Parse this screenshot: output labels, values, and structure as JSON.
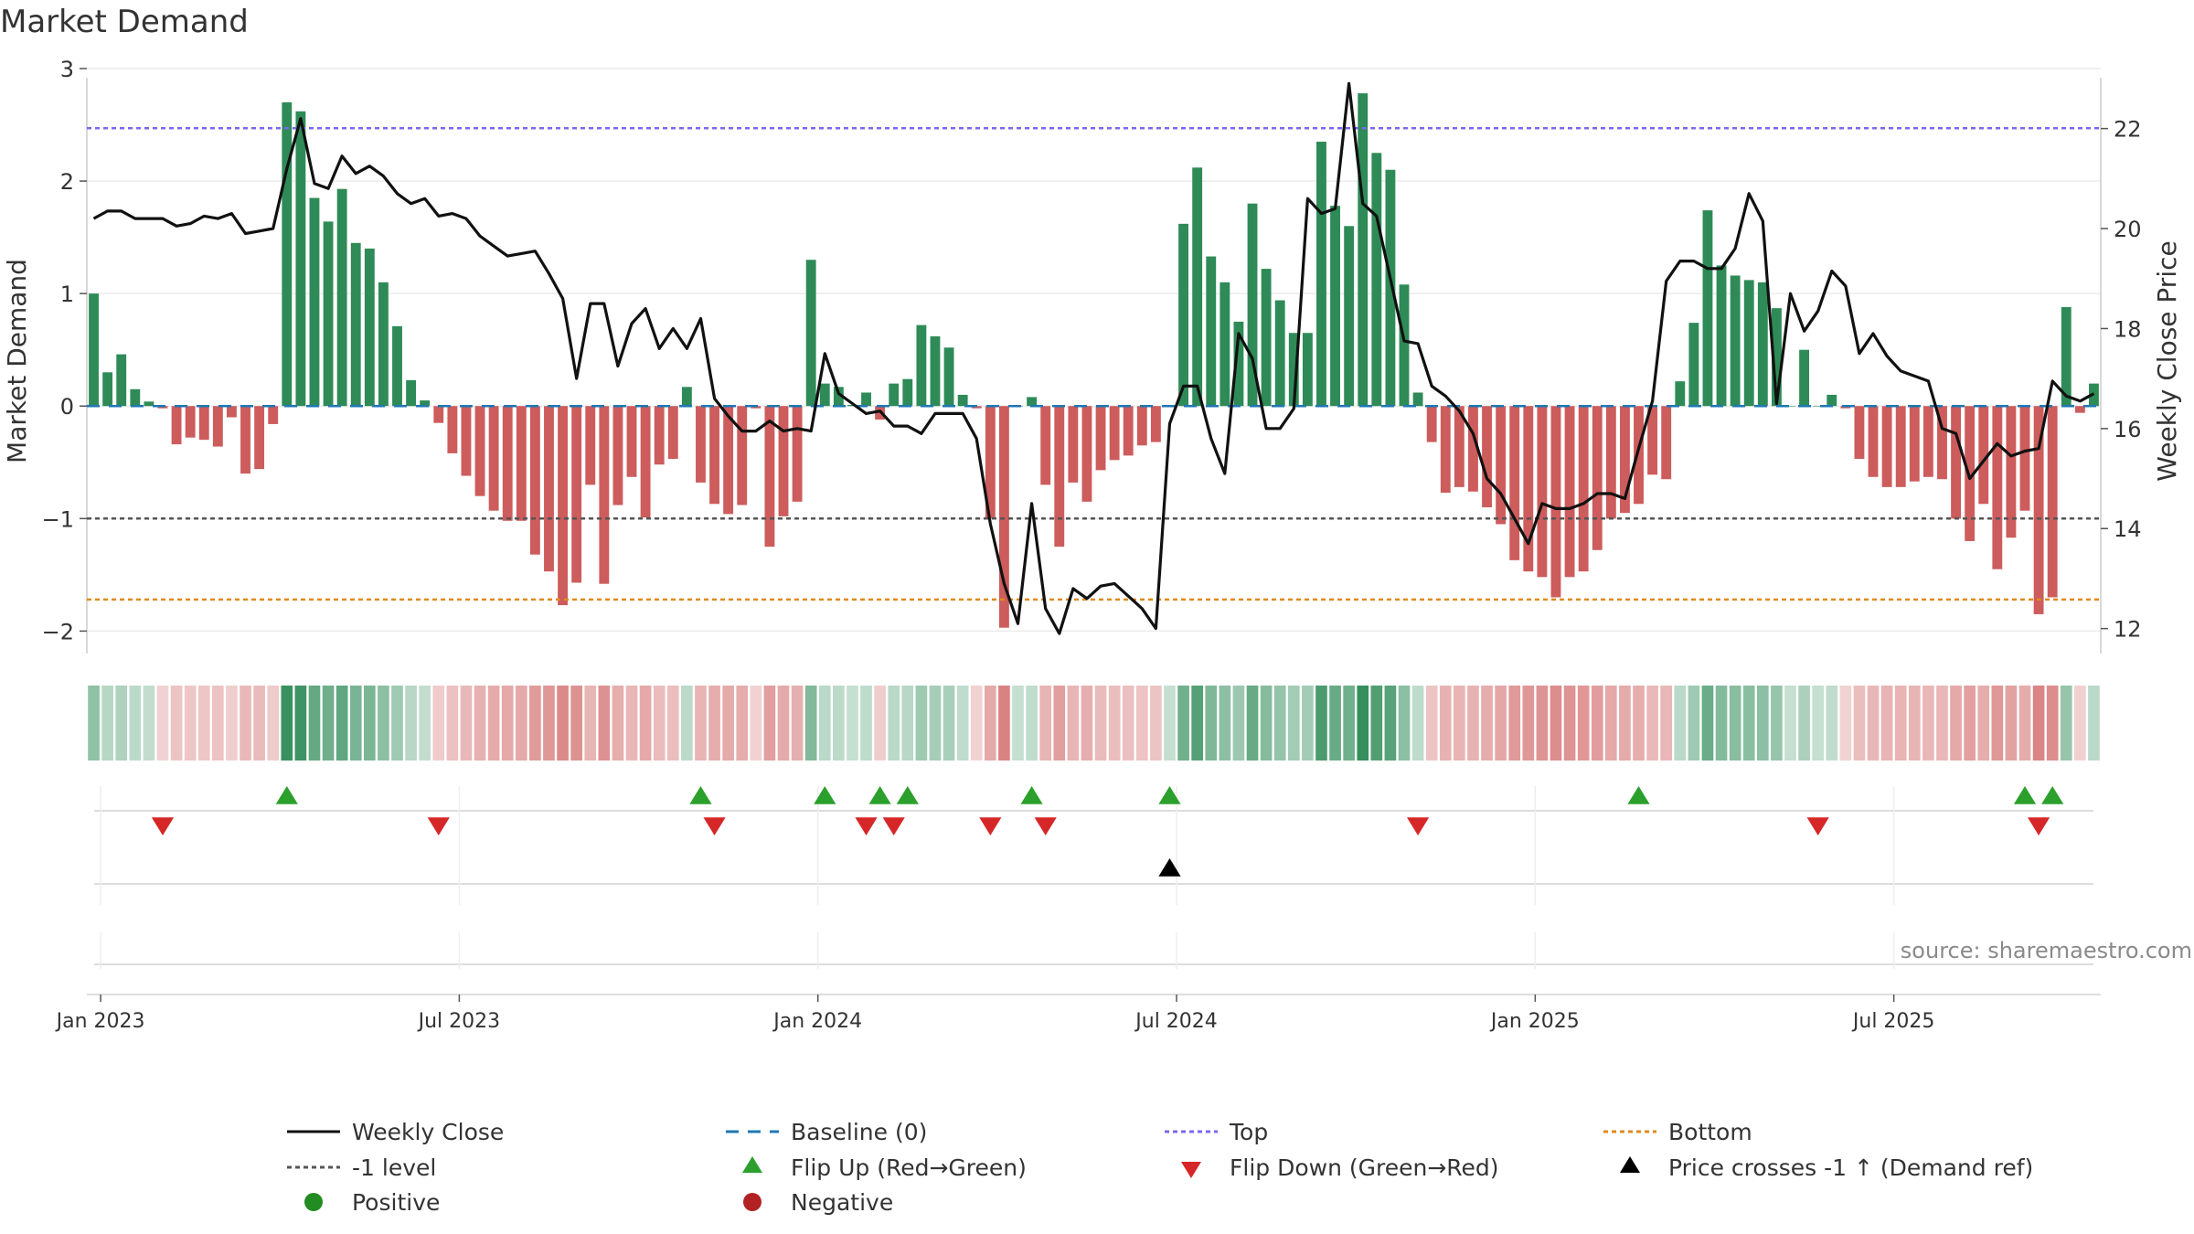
{
  "chart_data": {
    "type": "bar",
    "title": "Market Demand",
    "ylabel_left": "Market Demand",
    "ylabel_right": "Weekly Close Price",
    "ylim_left": [
      -2.2,
      3.0
    ],
    "ylim_right": [
      11.5,
      23.2
    ],
    "yticks_left": [
      -2,
      -1,
      0,
      1,
      2,
      3
    ],
    "yticks_right": [
      12,
      14,
      16,
      18,
      20,
      22
    ],
    "x_tick_labels": [
      "Jan 2023",
      "Jul 2023",
      "Jan 2024",
      "Jul 2024",
      "Jan 2025",
      "Jul 2025"
    ],
    "x_tick_weeks": [
      1,
      27,
      53,
      79,
      105,
      131
    ],
    "reference_lines": {
      "top": 2.47,
      "minus_one": -1,
      "bottom": -1.72,
      "baseline": 0
    },
    "demand": [
      1.0,
      0.3,
      0.46,
      0.15,
      0.04,
      -0.02,
      -0.34,
      -0.28,
      -0.3,
      -0.36,
      -0.1,
      -0.6,
      -0.56,
      -0.16,
      2.7,
      2.62,
      1.85,
      1.64,
      1.93,
      1.45,
      1.4,
      1.1,
      0.71,
      0.23,
      0.05,
      -0.15,
      -0.42,
      -0.62,
      -0.8,
      -0.93,
      -1.02,
      -1.02,
      -1.32,
      -1.47,
      -1.77,
      -1.57,
      -0.7,
      -1.58,
      -0.88,
      -0.63,
      -0.99,
      -0.52,
      -0.47,
      0.17,
      -0.68,
      -0.87,
      -0.96,
      -0.88,
      -0.02,
      -1.25,
      -0.98,
      -0.85,
      1.3,
      0.2,
      0.17,
      0.01,
      0.12,
      -0.12,
      0.2,
      0.24,
      0.72,
      0.62,
      0.52,
      0.1,
      -0.02,
      -1.0,
      -1.97,
      0.0,
      0.08,
      -0.7,
      -1.25,
      -0.68,
      -0.85,
      -0.57,
      -0.48,
      -0.44,
      -0.35,
      -0.32,
      0.0,
      1.62,
      2.12,
      1.33,
      1.1,
      0.75,
      1.8,
      1.22,
      0.94,
      0.65,
      0.65,
      2.35,
      1.78,
      1.6,
      2.78,
      2.25,
      2.1,
      1.08,
      0.12,
      -0.32,
      -0.77,
      -0.72,
      -0.76,
      -0.9,
      -1.05,
      -1.37,
      -1.47,
      -1.52,
      -1.7,
      -1.52,
      -1.47,
      -1.28,
      -1.0,
      -0.95,
      -0.87,
      -0.61,
      -0.65,
      0.22,
      0.74,
      1.74,
      1.25,
      1.16,
      1.12,
      1.1,
      0.87,
      0.0,
      0.5,
      0.0,
      0.1,
      -0.02,
      -0.47,
      -0.63,
      -0.72,
      -0.72,
      -0.67,
      -0.63,
      -0.65,
      -1.0,
      -1.2,
      -0.87,
      -1.45,
      -1.17,
      -0.93,
      -1.85,
      -1.7,
      0.88,
      -0.06,
      0.2
    ],
    "weekly_close": [
      20.2,
      20.35,
      20.35,
      20.2,
      20.2,
      20.2,
      20.05,
      20.1,
      20.25,
      20.2,
      20.3,
      19.9,
      19.95,
      20.0,
      21.2,
      22.2,
      20.9,
      20.8,
      21.45,
      21.1,
      21.25,
      21.05,
      20.7,
      20.5,
      20.6,
      20.25,
      20.3,
      20.2,
      19.85,
      19.65,
      19.45,
      19.5,
      19.55,
      19.1,
      18.6,
      17.0,
      18.5,
      18.5,
      17.25,
      18.1,
      18.4,
      17.6,
      18.0,
      17.6,
      18.2,
      16.6,
      16.25,
      15.95,
      15.95,
      16.15,
      15.95,
      16.0,
      15.95,
      17.5,
      16.7,
      16.5,
      16.3,
      16.35,
      16.05,
      16.05,
      15.9,
      16.3,
      16.3,
      16.3,
      15.8,
      14.1,
      12.9,
      12.1,
      14.5,
      12.4,
      11.9,
      12.8,
      12.6,
      12.85,
      12.9,
      12.65,
      12.4,
      12.0,
      16.1,
      16.85,
      16.85,
      15.8,
      15.1,
      17.9,
      17.4,
      16.0,
      16.0,
      16.4,
      20.6,
      20.3,
      20.4,
      22.9,
      20.5,
      20.25,
      19.0,
      17.75,
      17.7,
      16.85,
      16.65,
      16.35,
      15.9,
      15.0,
      14.7,
      14.2,
      13.7,
      14.5,
      14.4,
      14.4,
      14.5,
      14.7,
      14.7,
      14.6,
      15.6,
      16.55,
      18.95,
      19.35,
      19.35,
      19.2,
      19.2,
      19.6,
      20.7,
      20.15,
      16.5,
      18.7,
      17.95,
      18.35,
      19.15,
      18.85,
      17.5,
      17.9,
      17.45,
      17.15,
      17.05,
      16.95,
      16.0,
      15.9,
      15.0,
      15.35,
      15.7,
      15.45,
      15.55,
      15.6,
      16.95,
      16.65,
      16.55,
      16.7
    ],
    "flip_up_weeks": [
      14,
      44,
      53,
      57,
      59,
      68,
      78,
      112,
      140,
      142
    ],
    "flip_down_weeks": [
      5,
      25,
      45,
      56,
      58,
      65,
      69,
      96,
      125,
      141
    ],
    "price_cross_weeks": [
      78
    ],
    "colors": {
      "positive": "#2e8b57",
      "negative": "#cd5c5c",
      "close_line": "#111111",
      "baseline": "#1f77b4",
      "top": "#7b68ee",
      "minus_one": "#555555",
      "bottom": "#e08a1e",
      "flip_up": "#2ca02c",
      "flip_down": "#d62728",
      "price_cross": "#000000",
      "legend_positive": "#228b22",
      "legend_negative": "#b22222"
    },
    "legend": {
      "weekly_close": "Weekly Close",
      "baseline": "Baseline (0)",
      "top": "Top",
      "bottom": "Bottom",
      "minus_one": "-1 level",
      "flip_up": "Flip Up (Red→Green)",
      "flip_down": "Flip Down (Green→Red)",
      "price_cross": "Price crosses -1 ↑ (Demand ref)",
      "positive": "Positive",
      "negative": "Negative"
    },
    "source": "source: sharemaestro.com"
  }
}
